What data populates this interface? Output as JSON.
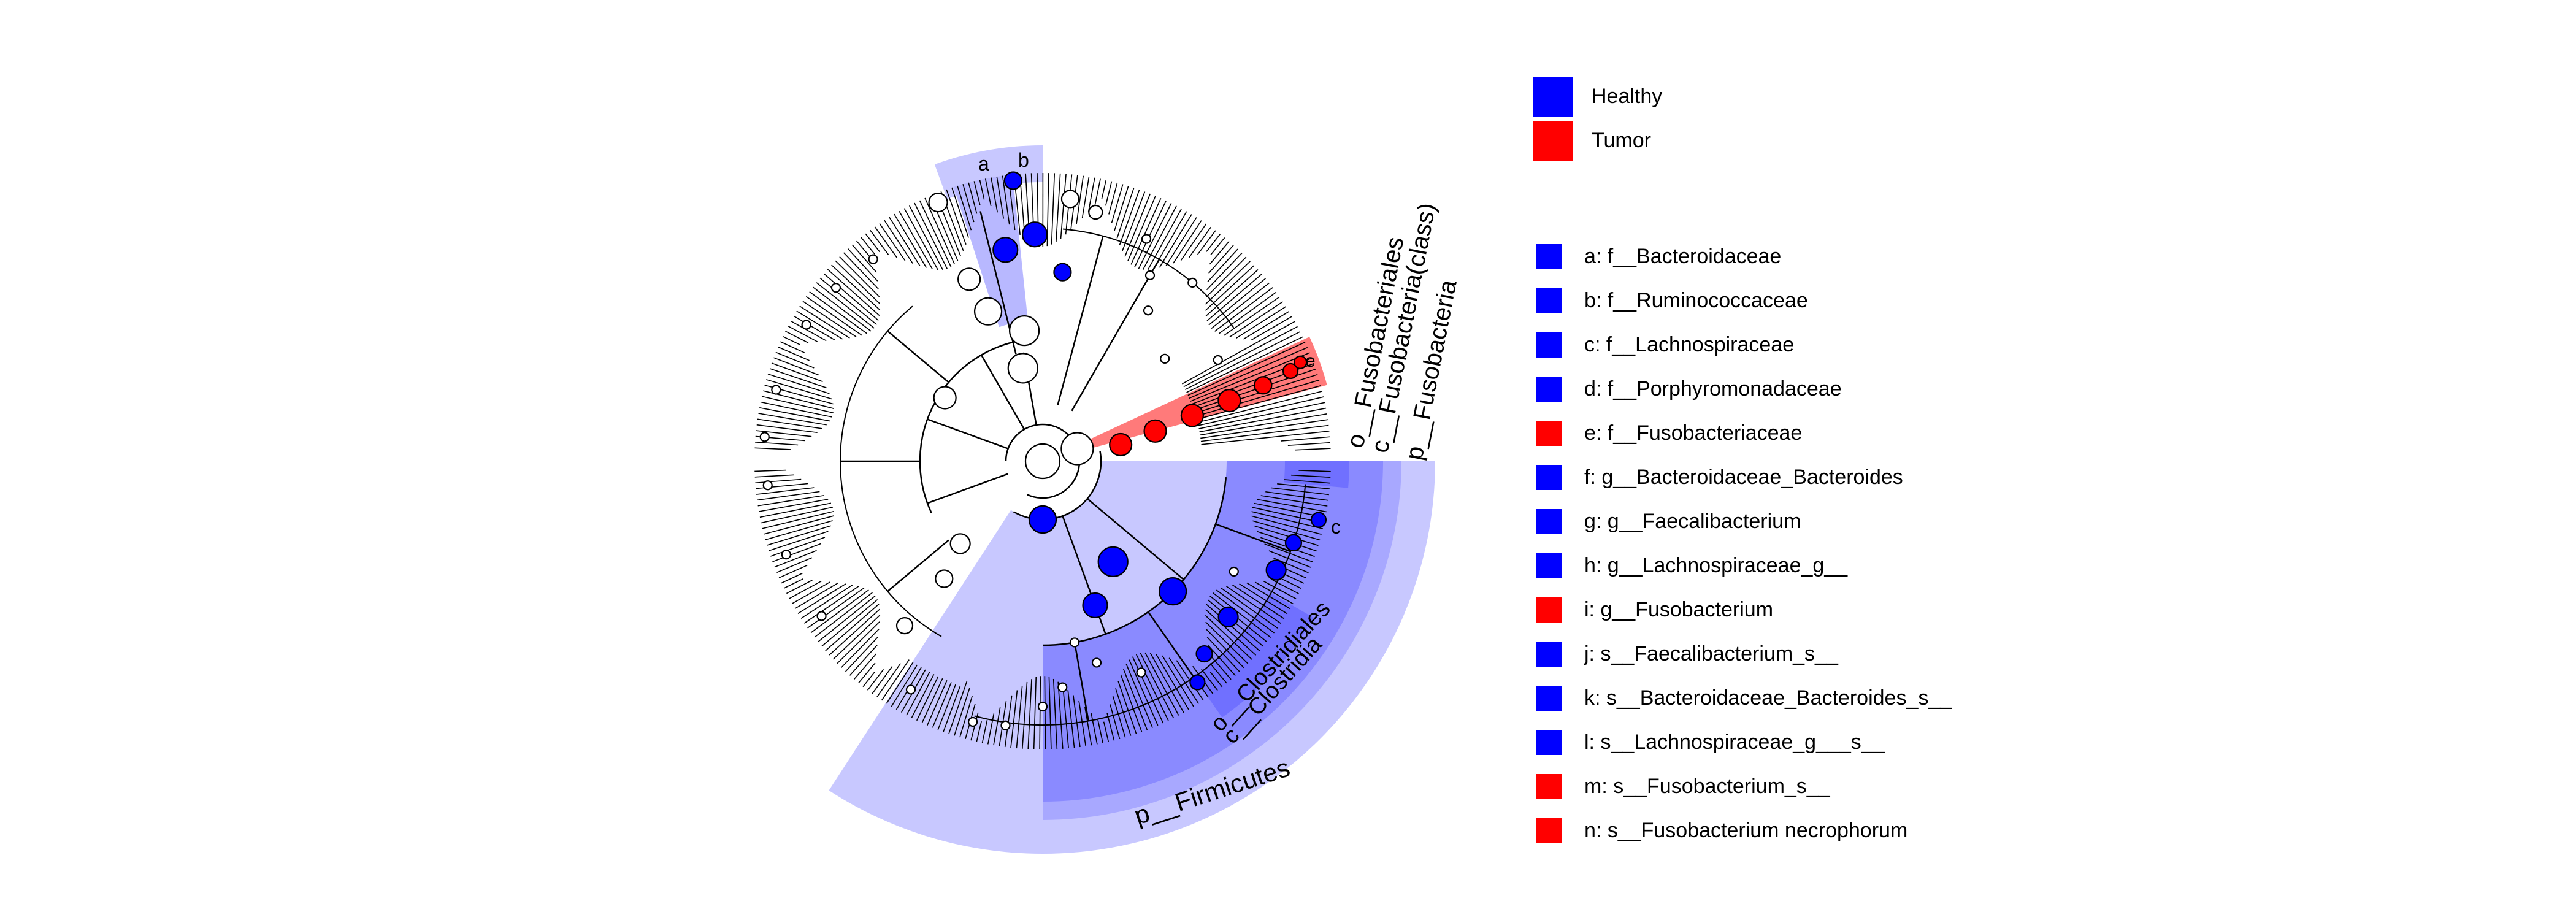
{
  "colors": {
    "healthy": "#0000ff",
    "tumor": "#ff0000",
    "node_fill": "#ffffff",
    "line": "#000000",
    "shade_light": "#c8c8ff",
    "shade_mid": "#a8a8ff",
    "shade_dark": "#8a8aff",
    "shade_red": "#ff7a7a"
  },
  "class_legend": [
    {
      "label": "Healthy",
      "color": "#0000ff"
    },
    {
      "label": "Tumor",
      "color": "#ff0000"
    }
  ],
  "taxa_legend": [
    {
      "label": "a: f__Bacteroidaceae",
      "color": "#0000ff"
    },
    {
      "label": "b: f__Ruminococcaceae",
      "color": "#0000ff"
    },
    {
      "label": "c: f__Lachnospiraceae",
      "color": "#0000ff"
    },
    {
      "label": "d: f__Porphyromonadaceae",
      "color": "#0000ff"
    },
    {
      "label": "e: f__Fusobacteriaceae",
      "color": "#ff0000"
    },
    {
      "label": "f: g__Bacteroidaceae_Bacteroides",
      "color": "#0000ff"
    },
    {
      "label": "g: g__Faecalibacterium",
      "color": "#0000ff"
    },
    {
      "label": "h: g__Lachnospiraceae_g__",
      "color": "#0000ff"
    },
    {
      "label": "i: g__Fusobacterium",
      "color": "#ff0000"
    },
    {
      "label": "j: s__Faecalibacterium_s__",
      "color": "#0000ff"
    },
    {
      "label": "k: s__Bacteroidaceae_Bacteroides_s__",
      "color": "#0000ff"
    },
    {
      "label": "l: s__Lachnospiraceae_g___s__",
      "color": "#0000ff"
    },
    {
      "label": "m: s__Fusobacterium_s__",
      "color": "#ff0000"
    },
    {
      "label": "n: s__Fusobacterium necrophorum",
      "color": "#ff0000"
    }
  ],
  "clade_labels": {
    "firmicutes": "p__Firmicutes",
    "clostridia": "c__Clostridia",
    "clostridiales": "o__Clostridiales",
    "fusobacteria_phylum": "p__Fusobacteria",
    "fusobacteria_class": "c__Fusobacteria(class)",
    "fusobacteriales": "o__Fusobacteriales",
    "letter_a": "a",
    "letter_b": "b",
    "letter_c": "c",
    "letter_e": "e"
  }
}
